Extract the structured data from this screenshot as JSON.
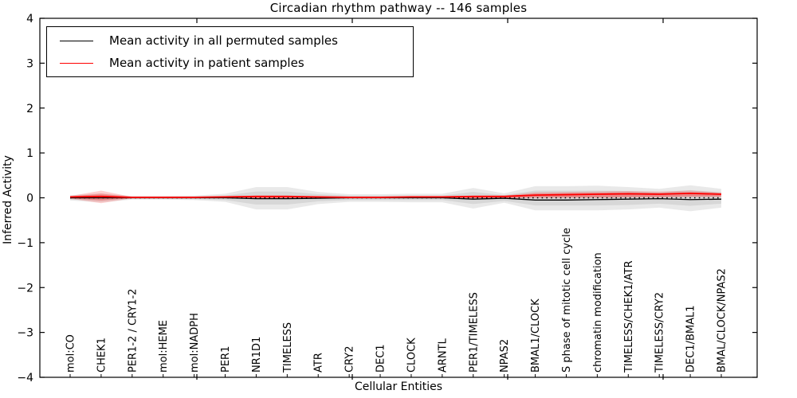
{
  "chart_data": {
    "type": "line",
    "title": "Circadian rhythm pathway -- 146 samples",
    "xlabel": "Cellular Entities",
    "ylabel": "Inferred Activity",
    "ylim": [
      -4,
      4
    ],
    "ytick_labels": [
      "−4",
      "−3",
      "−2",
      "−1",
      "0",
      "1",
      "2",
      "3",
      "4"
    ],
    "ytick_values": [
      -4,
      -3,
      -2,
      -1,
      0,
      1,
      2,
      3,
      4
    ],
    "grid": false,
    "legend_position": "upper left",
    "categories": [
      "mol:CO",
      "CHEK1",
      "PER1-2 / CRY1-2",
      "mol:HEME",
      "mol:NADPH",
      "PER1",
      "NR1D1",
      "TIMELESS",
      "ATR",
      "CRY2",
      "DEC1",
      "CLOCK",
      "ARNTL",
      "PER1/TIMELESS",
      "NPAS2",
      "BMAL1/CLOCK",
      "S phase of mitotic cell cycle",
      "chromatin modification",
      "TIMELESS/CHEK1/ATR",
      "TIMELESS/CRY2",
      "DEC1/BMAL1",
      "BMAL/CLOCK/NPAS2"
    ],
    "series": [
      {
        "name": "Mean activity in all permuted samples",
        "color": "#000000",
        "style": "solid",
        "values": [
          0.0,
          0.0,
          0.0,
          0.0,
          0.0,
          0.0,
          -0.02,
          -0.02,
          -0.01,
          0.0,
          0.0,
          0.0,
          0.0,
          -0.03,
          -0.01,
          -0.05,
          -0.05,
          -0.04,
          -0.03,
          -0.02,
          -0.04,
          -0.03
        ]
      },
      {
        "name": "Mean activity in patient samples",
        "color": "#ff0000",
        "style": "solid",
        "values": [
          0.02,
          0.03,
          0.01,
          0.01,
          0.01,
          0.02,
          0.03,
          0.03,
          0.02,
          0.01,
          0.01,
          0.02,
          0.02,
          0.03,
          0.03,
          0.06,
          0.07,
          0.08,
          0.09,
          0.08,
          0.1,
          0.08
        ]
      }
    ],
    "bands": [
      {
        "name": "permuted-envelope-outer",
        "color": "rgba(0,0,0,0.085)",
        "upper": [
          0.06,
          0.1,
          0.04,
          0.04,
          0.05,
          0.09,
          0.24,
          0.24,
          0.13,
          0.08,
          0.08,
          0.09,
          0.09,
          0.22,
          0.1,
          0.26,
          0.26,
          0.27,
          0.24,
          0.2,
          0.28,
          0.2
        ],
        "lower": [
          -0.06,
          -0.1,
          -0.04,
          -0.04,
          -0.05,
          -0.09,
          -0.26,
          -0.26,
          -0.14,
          -0.09,
          -0.09,
          -0.1,
          -0.1,
          -0.24,
          -0.11,
          -0.28,
          -0.28,
          -0.28,
          -0.26,
          -0.22,
          -0.3,
          -0.22
        ]
      },
      {
        "name": "permuted-envelope-inner",
        "color": "rgba(0,0,0,0.075)",
        "upper": [
          0.04,
          0.06,
          0.02,
          0.02,
          0.03,
          0.05,
          0.14,
          0.14,
          0.08,
          0.05,
          0.05,
          0.05,
          0.05,
          0.13,
          0.06,
          0.16,
          0.16,
          0.16,
          0.15,
          0.12,
          0.17,
          0.12
        ],
        "lower": [
          -0.04,
          -0.06,
          -0.02,
          -0.02,
          -0.03,
          -0.05,
          -0.15,
          -0.15,
          -0.08,
          -0.05,
          -0.05,
          -0.05,
          -0.05,
          -0.14,
          -0.07,
          -0.17,
          -0.17,
          -0.17,
          -0.16,
          -0.13,
          -0.18,
          -0.13
        ]
      },
      {
        "name": "patient-envelope-outer",
        "color": "rgba(255,0,0,0.18)",
        "upper": [
          0.04,
          0.16,
          0.02,
          0.02,
          0.02,
          0.03,
          0.05,
          0.05,
          0.03,
          0.02,
          0.02,
          0.03,
          0.03,
          0.05,
          0.05,
          0.12,
          0.13,
          0.14,
          0.15,
          0.14,
          0.16,
          0.12
        ],
        "lower": [
          -0.02,
          -0.12,
          -0.01,
          -0.01,
          -0.01,
          -0.01,
          -0.02,
          -0.02,
          -0.01,
          -0.01,
          -0.01,
          -0.01,
          -0.01,
          -0.02,
          -0.01,
          0.0,
          0.0,
          0.0,
          0.01,
          0.01,
          0.02,
          0.02
        ]
      },
      {
        "name": "patient-envelope-inner",
        "color": "rgba(255,0,0,0.22)",
        "upper": [
          0.03,
          0.09,
          0.015,
          0.015,
          0.015,
          0.02,
          0.04,
          0.04,
          0.02,
          0.015,
          0.015,
          0.02,
          0.02,
          0.04,
          0.04,
          0.09,
          0.1,
          0.11,
          0.11,
          0.11,
          0.12,
          0.1
        ],
        "lower": [
          -0.01,
          -0.06,
          -0.005,
          -0.005,
          -0.005,
          -0.005,
          -0.01,
          -0.01,
          -0.005,
          -0.005,
          -0.005,
          -0.005,
          -0.005,
          -0.01,
          -0.005,
          0.01,
          0.01,
          0.01,
          0.02,
          0.02,
          0.03,
          0.03
        ]
      }
    ],
    "zero_line": {
      "value": 0,
      "style": "dotted",
      "color": "#000000"
    }
  },
  "legend": {
    "items": [
      {
        "label": "Mean activity in all permuted samples",
        "color": "#000000"
      },
      {
        "label": "Mean activity in patient samples",
        "color": "#ff0000"
      }
    ]
  }
}
